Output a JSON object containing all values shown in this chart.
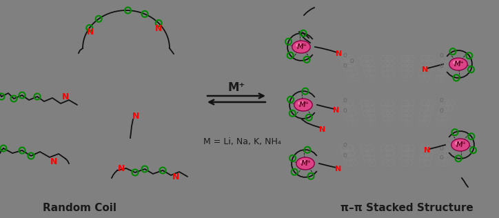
{
  "background_color": "#808080",
  "fig_width": 7.24,
  "fig_height": 3.16,
  "dpi": 100,
  "title_left": "Random Coil",
  "title_right": "π–π Stacked Structure",
  "arrow_label": "M⁺",
  "equation_label": "M = Li, Na, K, NH₄",
  "title_fontsize": 11,
  "text_color_dark": "#1a1a1a",
  "N_color": "#ff0000",
  "O_color": "#008800",
  "M_color": "#cc3366",
  "chain_color": "#111111",
  "pbi_color": "#888888"
}
